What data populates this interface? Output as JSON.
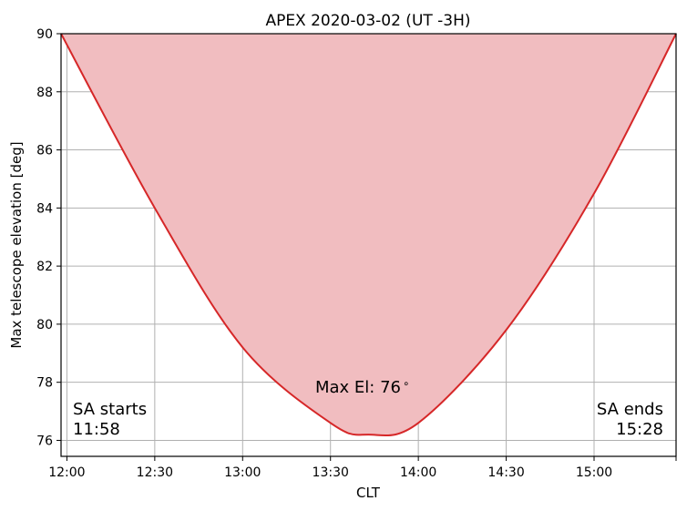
{
  "chart_data": {
    "type": "area",
    "title": "APEX 2020-03-02 (UT -3H)",
    "xlabel": "CLT",
    "ylabel": "Max telescope elevation [deg]",
    "xlim": [
      "11:58",
      "15:28"
    ],
    "ylim": [
      75.45,
      90
    ],
    "x_ticks": [
      "12:00",
      "12:30",
      "13:00",
      "13:30",
      "14:00",
      "14:30",
      "15:00"
    ],
    "y_ticks": [
      76,
      78,
      80,
      82,
      84,
      86,
      88,
      90
    ],
    "grid": true,
    "series": [
      {
        "color": "#d62728",
        "fill_color": "#f1bdc0",
        "fill_to": "top",
        "x": [
          "11:58",
          "12:30",
          "13:00",
          "13:30",
          "13:43",
          "14:00",
          "14:30",
          "15:00",
          "15:28"
        ],
        "y": [
          90,
          84.0,
          79.2,
          76.6,
          76.2,
          76.6,
          79.8,
          84.5,
          90
        ]
      }
    ],
    "annotations": {
      "max_el": "Max El: 76$^\\circ$",
      "start_label": "SA starts",
      "start_time": "11:58",
      "end_label": "SA ends",
      "end_time": "15:28"
    }
  }
}
